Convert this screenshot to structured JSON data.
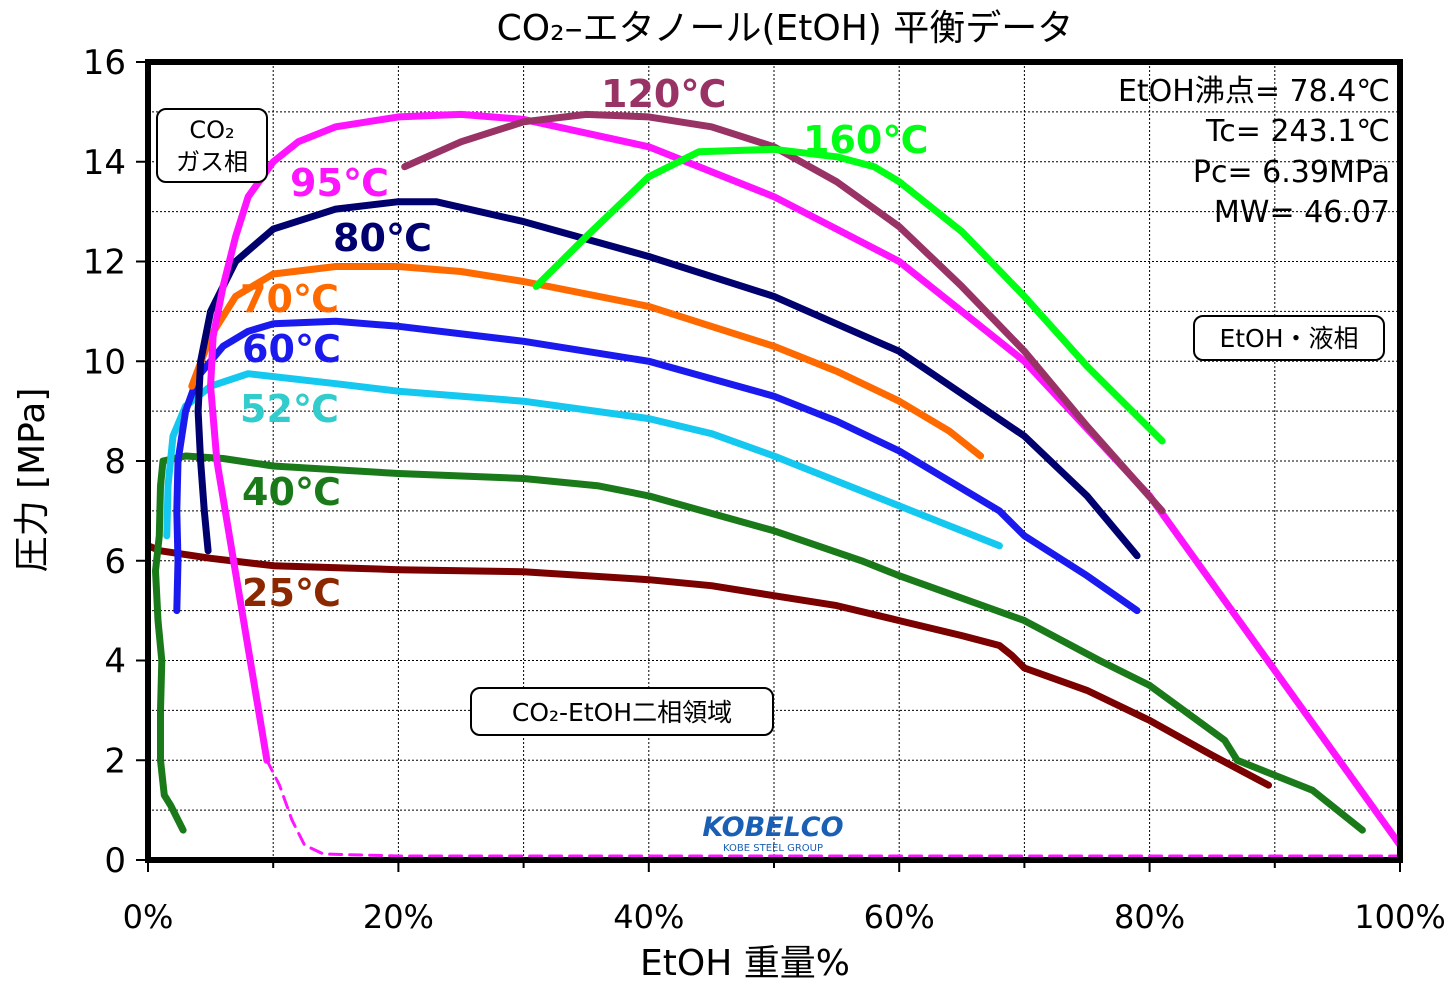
{
  "chart_data": {
    "type": "line",
    "title": "CO₂–エタノール(EtOH) 平衡データ",
    "xlabel": "EtOH 重量%",
    "ylabel": "圧力 [MPa]",
    "xlim": [
      0,
      100
    ],
    "ylim": [
      0,
      16
    ],
    "x_ticks": [
      "0%",
      "20%",
      "40%",
      "60%",
      "80%",
      "100%"
    ],
    "y_ticks": [
      "0",
      "2",
      "4",
      "6",
      "8",
      "10",
      "12",
      "14",
      "16"
    ],
    "grid": "horizontal dotted every 1 MPa, vertical dotted every 10%",
    "info_box": [
      "EtOH沸点= 78.4℃",
      "Tc= 243.1℃",
      "Pc= 6.39MPa",
      "MW= 46.07"
    ],
    "region_labels": {
      "gas": [
        "CO₂",
        "ガス相"
      ],
      "liquid": "EtOH・液相",
      "two_phase": "CO₂-EtOH二相領域"
    },
    "logo": {
      "text": "KOBELCO",
      "subtext": "KOBE STEEL GROUP"
    },
    "series": [
      {
        "name": "25℃",
        "color": "#7b0000",
        "x": [
          0,
          1,
          5,
          10,
          20,
          30,
          40,
          45,
          50,
          55,
          60,
          65,
          68,
          69,
          70,
          75,
          80,
          85,
          89.5
        ],
        "y": [
          6.3,
          6.2,
          6.05,
          5.9,
          5.82,
          5.78,
          5.62,
          5.5,
          5.3,
          5.1,
          4.8,
          4.5,
          4.3,
          4.1,
          3.85,
          3.4,
          2.8,
          2.1,
          1.5
        ]
      },
      {
        "name": "40℃",
        "color": "#1a7a1a",
        "x": [
          2.8,
          1.8,
          1.3,
          1.0,
          1.0,
          1.1,
          0.8,
          0.6,
          0.9,
          1.0,
          1.2,
          3,
          6,
          10,
          20,
          30,
          36,
          40,
          50,
          57,
          60,
          70,
          76,
          80,
          86,
          87,
          93,
          97
        ],
        "y": [
          0.6,
          1.1,
          1.3,
          2.0,
          3.0,
          4.0,
          4.8,
          5.8,
          6.5,
          7.5,
          8.0,
          8.1,
          8.05,
          7.9,
          7.75,
          7.65,
          7.5,
          7.3,
          6.6,
          6.0,
          5.7,
          4.8,
          4.0,
          3.5,
          2.4,
          2.0,
          1.4,
          0.6
        ]
      },
      {
        "name": "52℃",
        "color": "#14c8f0",
        "x": [
          1.5,
          1.6,
          2.0,
          3.0,
          5,
          8,
          15,
          20,
          30,
          40,
          45,
          50,
          55,
          60,
          65,
          68
        ],
        "y": [
          6.5,
          7.5,
          8.5,
          9.1,
          9.5,
          9.75,
          9.55,
          9.4,
          9.2,
          8.85,
          8.55,
          8.1,
          7.6,
          7.1,
          6.6,
          6.3
        ]
      },
      {
        "name": "60℃",
        "color": "#1a1aee",
        "x": [
          2.3,
          2.4,
          2.3,
          2.4,
          3.0,
          4,
          6,
          8,
          10,
          15,
          20,
          30,
          40,
          50,
          55,
          60,
          68,
          70,
          75,
          79
        ],
        "y": [
          5.0,
          6.0,
          7.0,
          8.0,
          9.0,
          9.7,
          10.3,
          10.6,
          10.75,
          10.8,
          10.7,
          10.4,
          10.0,
          9.3,
          8.8,
          8.2,
          7.0,
          6.5,
          5.7,
          5.0
        ]
      },
      {
        "name": "70℃",
        "color": "#ff6a00",
        "x": [
          3.5,
          5,
          7,
          10,
          15,
          20,
          25,
          30,
          40,
          50,
          55,
          60,
          64,
          66.5
        ],
        "y": [
          9.5,
          10.5,
          11.3,
          11.75,
          11.9,
          11.9,
          11.8,
          11.6,
          11.1,
          10.3,
          9.8,
          9.2,
          8.6,
          8.1
        ]
      },
      {
        "name": "80℃",
        "color": "#00006e",
        "x": [
          4.8,
          4.5,
          4.2,
          4.0,
          4.2,
          5,
          7,
          10,
          15,
          20,
          23,
          30,
          40,
          50,
          60,
          70,
          75,
          79
        ],
        "y": [
          6.2,
          7.0,
          8.0,
          9.0,
          10.0,
          11.0,
          12.0,
          12.65,
          13.05,
          13.2,
          13.2,
          12.8,
          12.1,
          11.3,
          10.2,
          8.5,
          7.3,
          6.1
        ]
      },
      {
        "name": "95℃",
        "color": "#ff14ff",
        "x": [
          9.5,
          8.5,
          7.5,
          6.5,
          5.5,
          5,
          5.2,
          6,
          7,
          8,
          10,
          12,
          15,
          20,
          25,
          30,
          40,
          50,
          60,
          70,
          80,
          90,
          100
        ],
        "y": [
          2.0,
          3.5,
          5.0,
          6.5,
          8.0,
          9.5,
          10.5,
          11.5,
          12.5,
          13.3,
          14.0,
          14.4,
          14.7,
          14.9,
          14.95,
          14.85,
          14.3,
          13.3,
          12.0,
          10.0,
          7.3,
          3.8,
          0.3
        ]
      },
      {
        "name": "95℃ (dashed)",
        "color": "#ff14ff",
        "dashed": true,
        "x": [
          9.5,
          10.5,
          11.5,
          12.5,
          14,
          20,
          40,
          60,
          80,
          100
        ],
        "y": [
          2.0,
          1.5,
          0.8,
          0.3,
          0.12,
          0.08,
          0.08,
          0.08,
          0.08,
          0.08
        ]
      },
      {
        "name": "120℃",
        "color": "#993366",
        "x": [
          20.5,
          25,
          30,
          35,
          40,
          45,
          50,
          55,
          60,
          65,
          70,
          75,
          81
        ],
        "y": [
          13.9,
          14.4,
          14.8,
          14.95,
          14.9,
          14.7,
          14.3,
          13.6,
          12.7,
          11.5,
          10.2,
          8.7,
          7.0
        ]
      },
      {
        "name": "160℃",
        "color": "#00ff14",
        "x": [
          31,
          35,
          40,
          44,
          50,
          55,
          58,
          60,
          65,
          70,
          75,
          81
        ],
        "y": [
          11.5,
          12.5,
          13.7,
          14.2,
          14.25,
          14.1,
          13.9,
          13.6,
          12.6,
          11.3,
          9.9,
          8.4
        ]
      }
    ],
    "series_labels": [
      {
        "text": "25℃",
        "color": "#8b2800"
      },
      {
        "text": "40℃",
        "color": "#1a7a1a"
      },
      {
        "text": "52℃",
        "color": "#33cccc"
      },
      {
        "text": "60℃",
        "color": "#1a1aee"
      },
      {
        "text": "70℃",
        "color": "#ff6a00"
      },
      {
        "text": "80℃",
        "color": "#00006e"
      },
      {
        "text": "95℃",
        "color": "#ff14ff"
      },
      {
        "text": "120℃",
        "color": "#993366"
      },
      {
        "text": "160℃",
        "color": "#00ff14"
      }
    ]
  }
}
